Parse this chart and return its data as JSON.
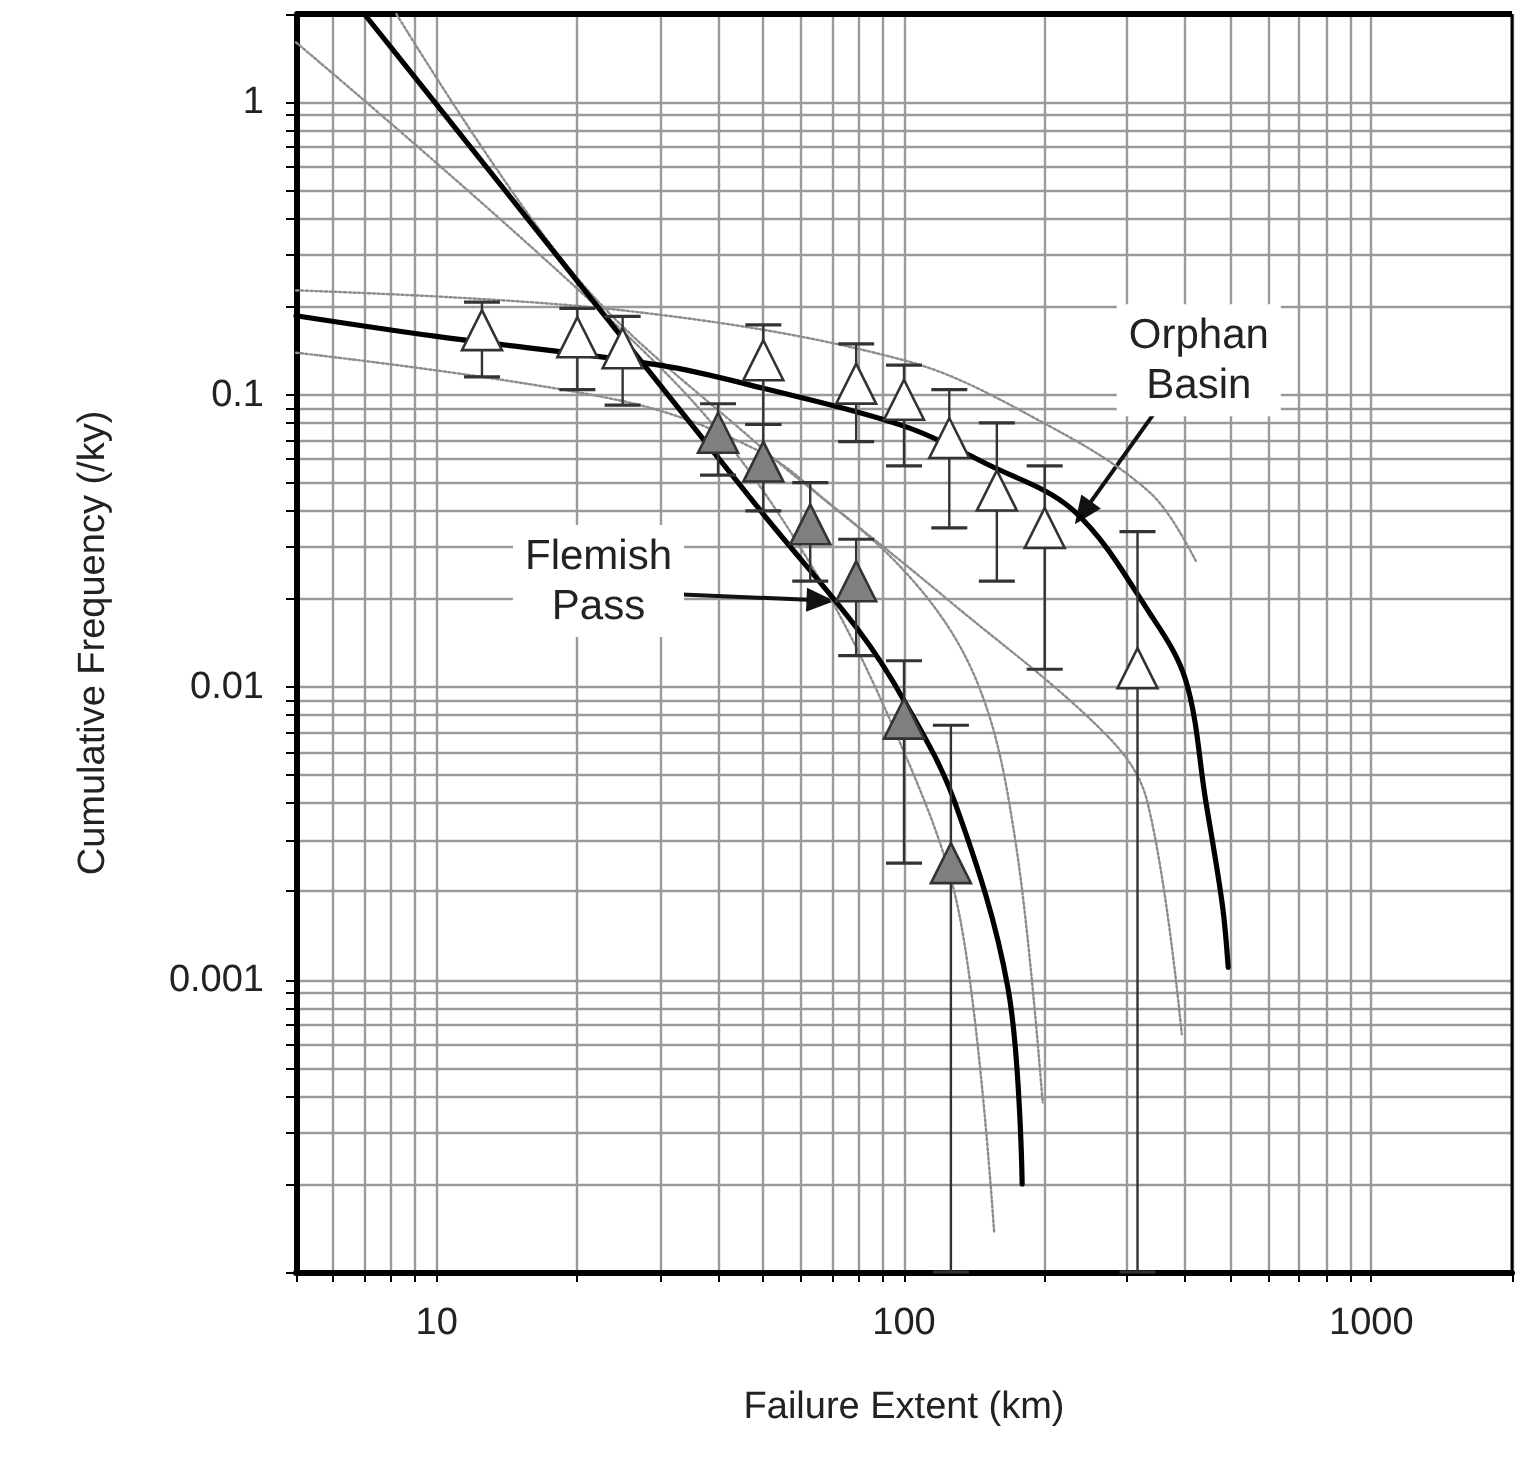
{
  "chart_data": {
    "type": "scatter",
    "xlabel": "Failure Extent (km)",
    "ylabel": "Cumulative Frequency (/ky)",
    "log": "xy",
    "grid": true,
    "xlim": [
      5,
      2000
    ],
    "ylim": [
      0.0001,
      2
    ],
    "xticks": [
      {
        "value": 5,
        "label": null
      },
      {
        "value": 6,
        "label": null
      },
      {
        "value": 7,
        "label": null
      },
      {
        "value": 8,
        "label": null
      },
      {
        "value": 9,
        "label": null
      },
      10,
      {
        "value": 20,
        "label": null
      },
      {
        "value": 30,
        "label": null
      },
      {
        "value": 40,
        "label": null
      },
      {
        "value": 50,
        "label": null
      },
      {
        "value": 60,
        "label": null
      },
      {
        "value": 70,
        "label": null
      },
      {
        "value": 80,
        "label": null
      },
      {
        "value": 90,
        "label": null
      },
      100,
      {
        "value": 200,
        "label": null
      },
      {
        "value": 300,
        "label": null
      },
      {
        "value": 400,
        "label": null
      },
      {
        "value": 500,
        "label": null
      },
      {
        "value": 600,
        "label": null
      },
      {
        "value": 700,
        "label": null
      },
      {
        "value": 800,
        "label": null
      },
      {
        "value": 900,
        "label": null
      },
      1000,
      {
        "value": 2000,
        "label": null
      }
    ],
    "yticks": [
      {
        "value": 0.0001,
        "label": null
      },
      {
        "value": 0.0002,
        "label": null
      },
      {
        "value": 0.0003,
        "label": null
      },
      {
        "value": 0.0004,
        "label": null
      },
      {
        "value": 0.0005,
        "label": null
      },
      {
        "value": 0.0006,
        "label": null
      },
      {
        "value": 0.0007,
        "label": null
      },
      {
        "value": 0.0008,
        "label": null
      },
      {
        "value": 0.0009,
        "label": null
      },
      0.001,
      {
        "value": 0.002,
        "label": null
      },
      {
        "value": 0.003,
        "label": null
      },
      {
        "value": 0.004,
        "label": null
      },
      {
        "value": 0.005,
        "label": null
      },
      {
        "value": 0.006,
        "label": null
      },
      {
        "value": 0.007,
        "label": null
      },
      {
        "value": 0.008,
        "label": null
      },
      {
        "value": 0.009,
        "label": null
      },
      0.01,
      {
        "value": 0.02,
        "label": null
      },
      {
        "value": 0.03,
        "label": null
      },
      {
        "value": 0.04,
        "label": null
      },
      {
        "value": 0.05,
        "label": null
      },
      {
        "value": 0.06,
        "label": null
      },
      {
        "value": 0.07,
        "label": null
      },
      {
        "value": 0.08,
        "label": null
      },
      {
        "value": 0.09,
        "label": null
      },
      0.1,
      {
        "value": 0.2,
        "label": null
      },
      {
        "value": 0.3,
        "label": null
      },
      {
        "value": 0.4,
        "label": null
      },
      {
        "value": 0.5,
        "label": null
      },
      {
        "value": 0.6,
        "label": null
      },
      {
        "value": 0.7,
        "label": null
      },
      {
        "value": 0.8,
        "label": null
      },
      {
        "value": 0.9,
        "label": null
      },
      1,
      {
        "value": 2,
        "label": null
      }
    ],
    "series": [
      {
        "type": "line",
        "line_style": "dotted",
        "color": "#8c8c8c",
        "x": [
          5,
          25,
          100,
          196,
          337,
          421
        ],
        "values": [
          0.227,
          0.194,
          0.131,
          0.081,
          0.046,
          0.027
        ]
      },
      {
        "type": "line",
        "line_style": "dotted",
        "color": "#8c8c8c",
        "x": [
          5,
          25,
          50,
          71,
          125,
          270,
          331,
          393
        ],
        "values": [
          0.139,
          0.095,
          0.063,
          0.041,
          0.0197,
          0.0069,
          0.0041,
          0.00065
        ]
      },
      {
        "type": "line",
        "line_style": "dotted",
        "color": "#8c8c8c",
        "x": [
          8.2,
          20,
          50,
          100,
          143,
          173,
          198
        ],
        "values": [
          2,
          0.25,
          0.065,
          0.025,
          0.0105,
          0.003,
          0.00038
        ]
      },
      {
        "type": "line",
        "line_style": "dotted",
        "color": "#8c8c8c",
        "x": [
          5,
          31,
          60,
          100,
          132,
          156
        ],
        "values": [
          1.6,
          0.118,
          0.03,
          0.006,
          0.0016,
          0.000135
        ]
      },
      {
        "type": "line",
        "line_style": "solid",
        "color": "#000000",
        "x": [
          5,
          10,
          30,
          50,
          100,
          150,
          231,
          337,
          401,
          442,
          480,
          494
        ],
        "values": [
          0.186,
          0.158,
          0.126,
          0.105,
          0.078,
          0.058,
          0.04,
          0.0177,
          0.0105,
          0.0041,
          0.0018,
          0.0011
        ]
      },
      {
        "type": "line",
        "line_style": "solid",
        "color": "#000000",
        "x": [
          7,
          10,
          25,
          50,
          80,
          100,
          128,
          167,
          179
        ],
        "values": [
          2,
          0.98,
          0.156,
          0.039,
          0.0156,
          0.009,
          0.0041,
          0.00093,
          0.0002
        ]
      },
      {
        "marker": "triangle",
        "color": "#ffffff",
        "x": [
          12.5,
          20,
          25,
          50,
          79,
          100,
          125,
          158,
          200,
          316
        ],
        "values": [
          0.166,
          0.157,
          0.144,
          0.131,
          0.109,
          0.096,
          0.071,
          0.047,
          0.035,
          0.0116
        ],
        "errors": [
          [
            0.115,
            0.207
          ],
          [
            0.104,
            0.197
          ],
          [
            0.092,
            0.185
          ],
          [
            0.079,
            0.173
          ],
          [
            0.069,
            0.149
          ],
          [
            0.057,
            0.126
          ],
          [
            0.035,
            0.104
          ],
          [
            0.023,
            0.08
          ],
          [
            0.0115,
            0.057
          ],
          [
            0.0001,
            0.034
          ]
        ]
      },
      {
        "marker": "triangle",
        "color": "#7f7f7f",
        "x": [
          40,
          50,
          63,
          79,
          100,
          126
        ],
        "values": [
          0.074,
          0.059,
          0.036,
          0.023,
          0.0078,
          0.0025
        ],
        "errors": [
          [
            0.053,
            0.093
          ],
          [
            0.04,
            0.079
          ],
          [
            0.023,
            0.05
          ],
          [
            0.0128,
            0.032
          ],
          [
            0.0025,
            0.0123
          ],
          [
            0.0001,
            0.0074
          ]
        ]
      }
    ],
    "annotations": [
      {
        "text": "Orphan Basin",
        "x": 232,
        "y": 0.036
      },
      {
        "text": "Flemish Pass",
        "x": 71,
        "y": 0.0197
      }
    ]
  }
}
